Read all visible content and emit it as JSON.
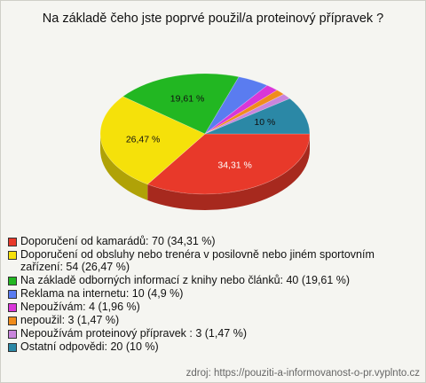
{
  "chart_data": {
    "type": "pie",
    "title": "Na základě čeho jste poprvé použil/a proteinový přípravek ?",
    "categories": [
      "Doporučení od kamarádů: 70 (34,31 %)",
      "Doporučení od obsluhy nebo trenéra v posilovně nebo jiném sportovním zařízení: 54 (26,47 %)",
      "Na základě odborných informací z knihy nebo článků: 40 (19,61 %)",
      "Reklama na internetu: 10 (4,9 %)",
      "Nepoužívám: 4 (1,96 %)",
      "nepoužil: 3 (1,47 %)",
      "Nepoužívám proteinový přípravek : 3 (1,47 %)",
      "Ostatní odpovědi: 20 (10 %)"
    ],
    "values": [
      34.31,
      26.47,
      19.61,
      4.9,
      1.96,
      1.47,
      1.47,
      10
    ],
    "value_labels": [
      "34,31 %",
      "26,47 %",
      "19,61 %",
      null,
      null,
      null,
      null,
      "10 %"
    ],
    "colors": [
      "#e8392a",
      "#f5e10a",
      "#22b722",
      "#5a7cf0",
      "#d936d9",
      "#f08c1c",
      "#c985dc",
      "#2b88a6"
    ],
    "source": "zdroj: https://pouziti-a-informovanost-o-pr.vyplnto.cz"
  }
}
